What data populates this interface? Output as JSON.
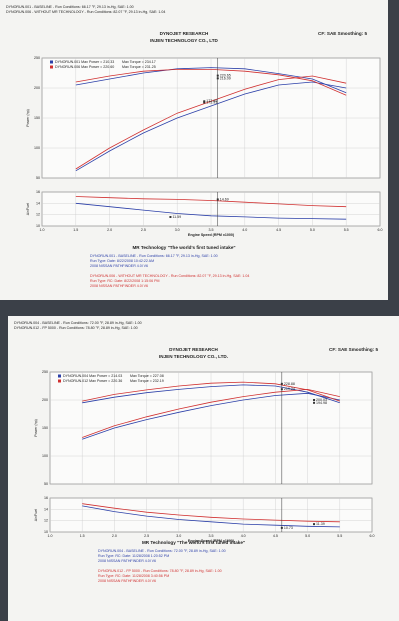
{
  "sheets": [
    {
      "runs": [
        "DYNORUN.001 - BASELINE - Run Conditions: 66.17 °F, 29.13 in-Hg, SAE: 1.00",
        "DYNORUN.006 - WITHOUT MR TECHNOLOGY - Run Conditions: 82.07 °F, 29.13 in-Hg, SAE: 1.04"
      ],
      "company": "DYNOJET RESEARCH",
      "title": "INJEN TECHNOLOGY CO., LTD",
      "cf": "CF: SAE Smoothing: 5",
      "tagline": "MR Technology \"The world's first tuned intake\"",
      "footer_blue": [
        "DYNORUN.001 - BASELINE - Run Conditions: 66.17 °F, 29.13 in-Hg, SAE: 1.00",
        "Run Type: Date: 8/22/2008 10:42:22 AM",
        "2008 NISSAN PATHFINDER 4.0l V6"
      ],
      "footer_red": [
        "DYNORUN.006 - WITHOUT MR TECHNOLOGY - Run Conditions: 82.07 °F, 29.13 in-Hg, SAE: 1.04",
        "Run Type: RC: Date: 8/22/2008 1:15:06 PM",
        "2008 NISSAN PATHFINDER 4.0l V6"
      ]
    },
    {
      "runs": [
        "DYNORUN.004 - BASELINE - Run Conditions: 72.00 °F, 28.89 in-Hg, SAE: 1.00",
        "DYNORUN.012 - FP 5000 - Run Conditions: 78.80 °F, 28.89 in-Hg, SAE: 1.00"
      ],
      "company": "DYNOJET RESEARCH",
      "title": "INJEN TECHNOLOGY CO., LTD.",
      "cf": "CF: SAE Smoothing: 5",
      "tagline": "MR Technology \"The world's first tuned intake\"",
      "footer_blue": [
        "DYNORUN.004 - BASELINE - Run Conditions: 72.00 °F, 28.89 in-Hg, SAE: 1.00",
        "Run Type: RC: Date: 11/28/2008 1:20:52 PM",
        "2008 NISSAN PATHFINDER 4.0l V6"
      ],
      "footer_red": [
        "DYNORUN.012 - FP 5000 - Run Conditions: 78.80 °F, 28.89 in-Hg, SAE: 1.00",
        "Run Type: RC: Date: 11/28/2008 3:40:56 PM",
        "2008 NISSAN PATHFINDER 4.0l V6"
      ]
    }
  ],
  "chart_data": [
    {
      "type": "line",
      "ylabel": "Power (hp)",
      "xlim": [
        1,
        6
      ],
      "ylim": [
        50,
        250
      ],
      "yticks": [
        50,
        100,
        150,
        200,
        250
      ],
      "xticks": [
        {
          "value": 1,
          "label": "1.0"
        },
        1.5,
        {
          "value": 2,
          "label": "2.0"
        },
        2.5,
        {
          "value": 3,
          "label": "3.0"
        },
        3.5,
        {
          "value": 4,
          "label": "4.0"
        },
        4.5,
        {
          "value": 5,
          "label": "5.0"
        },
        5.5,
        {
          "value": 6,
          "label": "6.0"
        }
      ],
      "legend": [
        {
          "label": "DYNORUN.001 Max Power = 210.33",
          "color": "#2b3fa8"
        },
        {
          "label": "DYNORUN.006 Max Power = 220.60",
          "color": "#d03030"
        }
      ],
      "legend_right": [
        "Max Torque = 234.17",
        "Max Torque = 231.25"
      ],
      "x": [
        1.5,
        2,
        2.5,
        3,
        3.5,
        4,
        4.5,
        5,
        5.5
      ],
      "series": [
        {
          "color": "#2b3fa8",
          "values": [
            62,
            95,
            125,
            150,
            170,
            190,
            205,
            210,
            200
          ]
        },
        {
          "color": "#2b3fa8",
          "values": [
            205,
            215,
            225,
            232,
            234,
            232,
            224,
            215,
            192
          ]
        },
        {
          "color": "#d03030",
          "values": [
            65,
            100,
            130,
            158,
            178,
            198,
            214,
            220,
            208
          ]
        },
        {
          "color": "#d03030",
          "values": [
            210,
            220,
            228,
            231,
            231,
            228,
            222,
            212,
            188
          ]
        }
      ],
      "cursor": 3.6,
      "annotations": [
        {
          "x": 3.6,
          "value": 220.65
        },
        {
          "x": 3.6,
          "value": 216.09
        },
        {
          "x": 3.4,
          "value": 177.85
        },
        {
          "x": 3.4,
          "value": 175.93
        }
      ]
    },
    {
      "type": "line",
      "ylabel": "Air/Fuel",
      "xlabel": "Engine Speed (RPM x1000)",
      "xlim": [
        1,
        6
      ],
      "ylim": [
        10,
        16
      ],
      "yticks": [
        10,
        12,
        14,
        16
      ],
      "xticks": [
        {
          "value": 1,
          "label": "1.0"
        },
        1.5,
        {
          "value": 2,
          "label": "2.0"
        },
        2.5,
        {
          "value": 3,
          "label": "3.0"
        },
        3.5,
        {
          "value": 4,
          "label": "4.0"
        },
        4.5,
        {
          "value": 5,
          "label": "5.0"
        },
        5.5,
        {
          "value": 6,
          "label": "6.0"
        }
      ],
      "x": [
        1.5,
        2,
        2.5,
        3,
        3.5,
        4,
        4.5,
        5,
        5.5
      ],
      "series": [
        {
          "color": "#d03030",
          "values": [
            15.2,
            15,
            14.8,
            14.7,
            14.5,
            14.2,
            13.9,
            13.6,
            13.4
          ]
        },
        {
          "color": "#2b3fa8",
          "values": [
            14,
            13.4,
            12.8,
            12.2,
            11.8,
            11.6,
            11.4,
            11.3,
            11.2
          ]
        }
      ],
      "cursor": 3.6,
      "annotations": [
        {
          "x": 3.6,
          "value": 14.69
        },
        {
          "x": 2.9,
          "value": 11.59
        }
      ]
    },
    {
      "type": "line",
      "ylabel": "Power (hp)",
      "xlim": [
        1,
        6
      ],
      "ylim": [
        50,
        250
      ],
      "yticks": [
        50,
        100,
        150,
        200,
        250
      ],
      "xticks": [
        {
          "value": 1,
          "label": "1.0"
        },
        1.5,
        {
          "value": 2,
          "label": "2.0"
        },
        2.5,
        {
          "value": 3,
          "label": "3.0"
        },
        3.5,
        {
          "value": 4,
          "label": "4.0"
        },
        4.5,
        {
          "value": 5,
          "label": "5.0"
        },
        5.5,
        {
          "value": 6,
          "label": "6.0"
        }
      ],
      "legend": [
        {
          "label": "DYNORUN.004 Max Power = 214.03",
          "color": "#2b3fa8"
        },
        {
          "label": "DYNORUN.012 Max Power = 220.36",
          "color": "#d03030"
        }
      ],
      "legend_right": [
        "Max Torque = 227.08",
        "Max Torque = 232.19"
      ],
      "x": [
        1.5,
        2,
        2.5,
        3,
        3.5,
        4,
        4.5,
        5,
        5.5
      ],
      "series": [
        {
          "color": "#2b3fa8",
          "values": [
            130,
            150,
            165,
            178,
            190,
            200,
            208,
            212,
            200
          ]
        },
        {
          "color": "#2b3fa8",
          "values": [
            195,
            205,
            213,
            219,
            224,
            227,
            225,
            214,
            195
          ]
        },
        {
          "color": "#d03030",
          "values": [
            133,
            154,
            170,
            184,
            196,
            206,
            214,
            219,
            206
          ]
        },
        {
          "color": "#d03030",
          "values": [
            198,
            210,
            218,
            225,
            230,
            232,
            229,
            218,
            198
          ]
        }
      ],
      "cursor": 4.6,
      "annotations": [
        {
          "x": 4.6,
          "value": 228.88
        },
        {
          "x": 4.6,
          "value": 219.24
        },
        {
          "x": 5.1,
          "value": 200.03
        },
        {
          "x": 5.1,
          "value": 194.98
        }
      ]
    },
    {
      "type": "line",
      "ylabel": "Air/Fuel",
      "xlabel": "Engine Speed (RPM x1000)",
      "xlim": [
        1,
        6
      ],
      "ylim": [
        10,
        16
      ],
      "yticks": [
        10,
        12,
        14,
        16
      ],
      "xticks": [
        {
          "value": 1,
          "label": "1.0"
        },
        1.5,
        {
          "value": 2,
          "label": "2.0"
        },
        2.5,
        {
          "value": 3,
          "label": "3.0"
        },
        3.5,
        {
          "value": 4,
          "label": "4.0"
        },
        4.5,
        {
          "value": 5,
          "label": "5.0"
        },
        5.5,
        {
          "value": 6,
          "label": "6.0"
        }
      ],
      "x": [
        1.5,
        2,
        2.5,
        3,
        3.5,
        4,
        4.5,
        5,
        5.5
      ],
      "series": [
        {
          "color": "#d03030",
          "values": [
            15,
            14.2,
            13.5,
            13,
            12.6,
            12.3,
            12.1,
            11.9,
            11.8
          ]
        },
        {
          "color": "#2b3fa8",
          "values": [
            14.6,
            13.6,
            12.8,
            12.2,
            11.8,
            11.4,
            11.2,
            11,
            10.9
          ]
        }
      ],
      "cursor": 4.6,
      "annotations": [
        {
          "x": 4.6,
          "value": 10.73
        },
        {
          "x": 5.1,
          "value": 11.39
        }
      ]
    }
  ]
}
